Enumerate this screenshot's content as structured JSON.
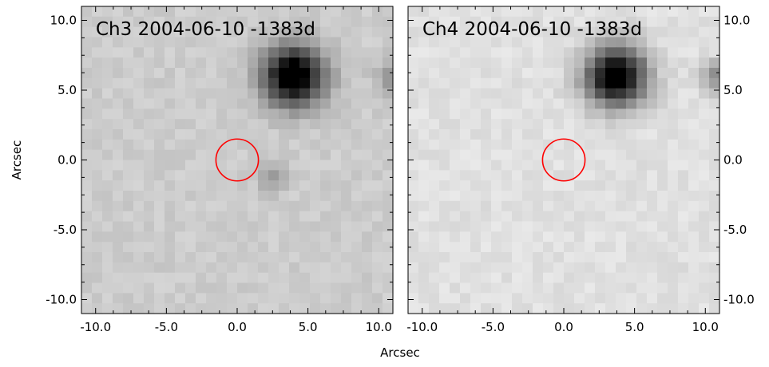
{
  "figure": {
    "xlabel": "Arcsec",
    "ylabel": "Arcsec"
  },
  "chart_data": [
    {
      "type": "heatmap",
      "title": "Ch3 2004-06-10 -1383d",
      "xlabel": "",
      "ylabel": "Arcsec",
      "xlim": [
        -11.0,
        11.0
      ],
      "ylim": [
        -11.0,
        11.0
      ],
      "xticks": [
        -10.0,
        -5.0,
        0.0,
        5.0,
        10.0
      ],
      "yticks": [
        -10.0,
        -5.0,
        0.0,
        5.0,
        10.0
      ],
      "xtick_labels": [
        "-10.0",
        "-5.0",
        "0.0",
        "5.0",
        "10.0"
      ],
      "ytick_labels": [
        "-10.0",
        "-5.0",
        "0.0",
        "5.0",
        "10.0"
      ],
      "ytick_side": "left",
      "colormap": "gray",
      "background_level": 0.8,
      "sources": [
        {
          "x": 4.0,
          "y": 6.0,
          "peak": 0.95,
          "sigma": 1.5
        },
        {
          "x": 11.0,
          "y": 6.0,
          "peak": 0.25,
          "sigma": 0.8
        },
        {
          "x": 2.5,
          "y": -1.3,
          "peak": 0.18,
          "sigma": 0.7
        }
      ],
      "aperture": {
        "x": 0.0,
        "y": 0.0,
        "radius": 1.5,
        "color": "#ff0000"
      }
    },
    {
      "type": "heatmap",
      "title": "Ch4 2004-06-10 -1383d",
      "xlabel": "",
      "ylabel": "",
      "xlim": [
        -11.0,
        11.0
      ],
      "ylim": [
        -11.0,
        11.0
      ],
      "xticks": [
        -10.0,
        -5.0,
        0.0,
        5.0,
        10.0
      ],
      "yticks": [
        -10.0,
        -5.0,
        0.0,
        5.0,
        10.0
      ],
      "xtick_labels": [
        "-10.0",
        "-5.0",
        "0.0",
        "5.0",
        "10.0"
      ],
      "ytick_labels": [
        "-10.0",
        "-5.0",
        "0.0",
        "5.0",
        "10.0"
      ],
      "ytick_side": "right",
      "colormap": "gray",
      "background_level": 0.88,
      "sources": [
        {
          "x": 3.7,
          "y": 6.0,
          "peak": 1.0,
          "sigma": 1.5
        },
        {
          "x": 11.0,
          "y": 6.0,
          "peak": 0.35,
          "sigma": 0.8
        }
      ],
      "aperture": {
        "x": 0.0,
        "y": 0.0,
        "radius": 1.5,
        "color": "#ff0000"
      }
    }
  ]
}
